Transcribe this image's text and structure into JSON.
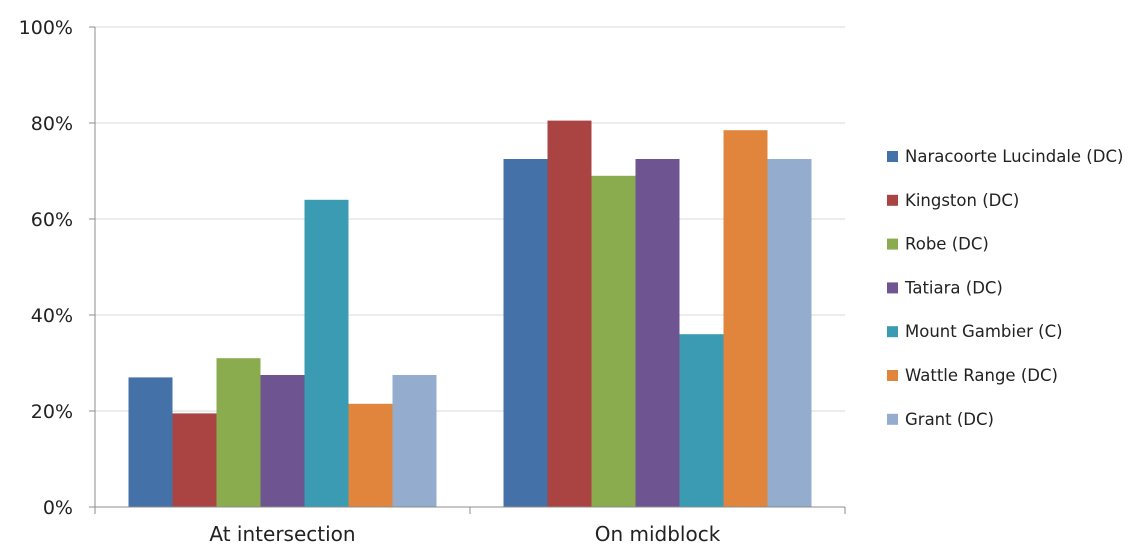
{
  "chart_data": {
    "type": "bar",
    "categories": [
      "At intersection",
      "On midblock"
    ],
    "series": [
      {
        "name": "Naracoorte Lucindale (DC)",
        "values": [
          27,
          72.5
        ],
        "color": "#4472a8"
      },
      {
        "name": "Kingston (DC)",
        "values": [
          19.5,
          80.5
        ],
        "color": "#a94442"
      },
      {
        "name": "Robe (DC)",
        "values": [
          31,
          69
        ],
        "color": "#8aac4e"
      },
      {
        "name": "Tatiara (DC)",
        "values": [
          27.5,
          72.5
        ],
        "color": "#6e5490"
      },
      {
        "name": "Mount Gambier (C)",
        "values": [
          64,
          36
        ],
        "color": "#3b9bb2"
      },
      {
        "name": "Wattle Range (DC)",
        "values": [
          21.5,
          78.5
        ],
        "color": "#e0853b"
      },
      {
        "name": "Grant (DC)",
        "values": [
          27.5,
          72.5
        ],
        "color": "#94adcf"
      }
    ],
    "yticks": [
      "0%",
      "20%",
      "40%",
      "60%",
      "80%",
      "100%"
    ],
    "ylim": [
      0,
      100
    ],
    "grid": true,
    "legend": "right",
    "title": "",
    "xlabel": "",
    "ylabel": ""
  }
}
